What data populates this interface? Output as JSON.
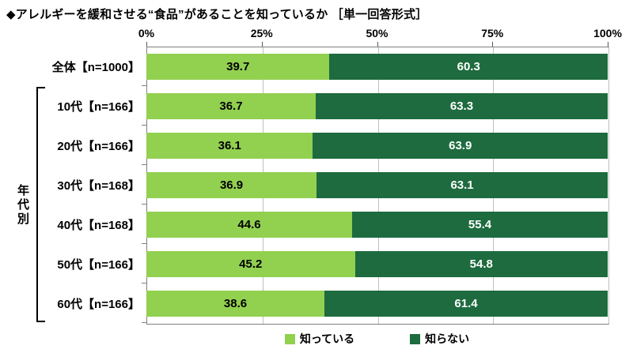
{
  "title": "◆アレルギーを緩和させる“食品”があることを知っているか ［単一回答形式］",
  "chart_data": {
    "type": "bar",
    "orientation": "horizontal",
    "stacked": true,
    "title": "◆アレルギーを緩和させる“食品”があることを知っているか ［単一回答形式］",
    "categories": [
      "全体【n=1000】",
      "10代【n=166】",
      "20代【n=166】",
      "30代【n=168】",
      "40代【n=168】",
      "50代【n=166】",
      "60代【n=166】"
    ],
    "series": [
      {
        "name": "知っている",
        "color": "#92d050",
        "label_color": "#000000",
        "values": [
          39.7,
          36.7,
          36.1,
          36.9,
          44.6,
          45.2,
          38.6
        ]
      },
      {
        "name": "知らない",
        "color": "#1d6b3e",
        "label_color": "#ffffff",
        "values": [
          60.3,
          63.3,
          63.9,
          63.1,
          55.4,
          54.8,
          61.4
        ]
      }
    ],
    "x_axis": {
      "ticks": [
        "0%",
        "25%",
        "50%",
        "75%",
        "100%"
      ],
      "range": [
        0,
        100
      ],
      "unit": "%"
    },
    "group_label": "年代別",
    "group_rows_covered": [
      "10代【n=166】",
      "60代【n=166】"
    ],
    "legend_position": "bottom",
    "grid": true
  }
}
